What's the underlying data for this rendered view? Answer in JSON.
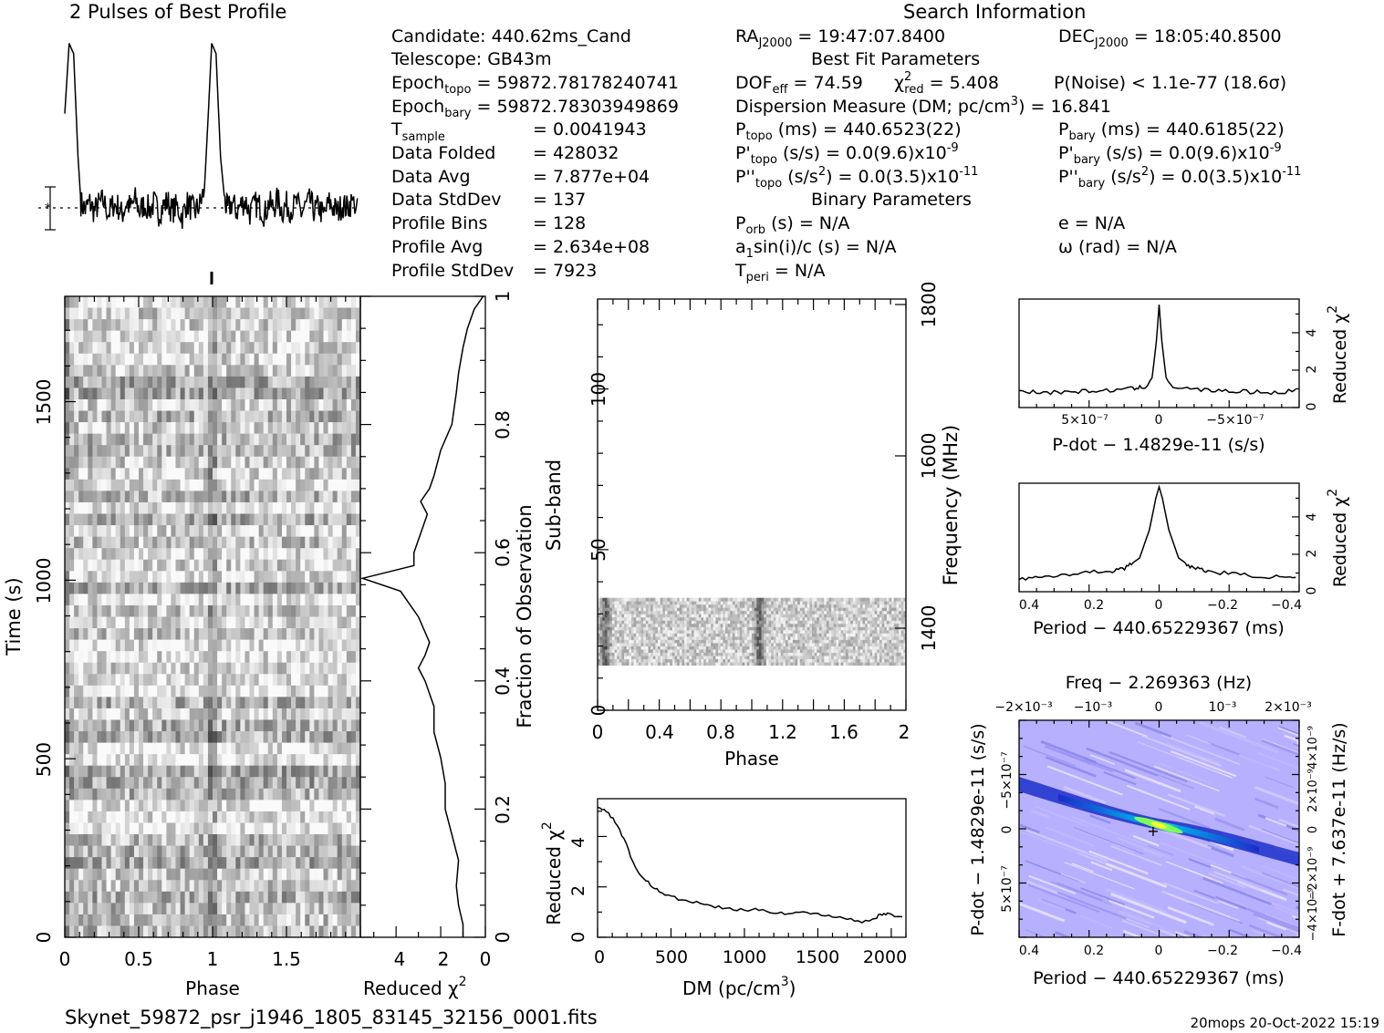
{
  "header": {
    "profile_title": "2 Pulses of Best Profile",
    "search_title": "Search Information",
    "best_fit_title": "Best Fit Parameters",
    "binary_title": "Binary Parameters",
    "filename": "Skynet_59872_psr_j1946_1805_83145_32156_0001.fits",
    "footer_stamp": "20mops 20-Oct-2022 15:19"
  },
  "candidate_info": {
    "candidate": "Candidate:  440.62ms_Cand",
    "telescope": "Telescope:  GB43m",
    "epoch_topo_label": "Epoch",
    "epoch_topo_sub": "topo",
    "epoch_topo_value": " = 59872.78178240741",
    "epoch_bary_label": "Epoch",
    "epoch_bary_sub": "bary",
    "epoch_bary_value": " = 59872.78303949869",
    "tsample_label": "T",
    "tsample_sub": "sample",
    "tsample_value": "=   0.0041943",
    "data_folded_label": "Data Folded",
    "data_folded_value": "=   428032",
    "data_avg_label": "Data Avg",
    "data_avg_value": "=   7.877e+04",
    "data_stddev_label": "Data StdDev",
    "data_stddev_value": "=   137",
    "profile_bins_label": "Profile Bins",
    "profile_bins_value": "=   128",
    "profile_avg_label": "Profile Avg",
    "profile_avg_value": "=   2.634e+08",
    "profile_stddev_label": "Profile StdDev",
    "profile_stddev_value": "=   7923"
  },
  "search_info": {
    "ra_label": "RA",
    "ra_sub": "J2000",
    "ra_value": " = 19:47:07.8400",
    "dec_label": "DEC",
    "dec_sub": "J2000",
    "dec_value": " = 18:05:40.8500",
    "dof_label": "DOF",
    "dof_sub": "eff",
    "dof_value": " = 74.59",
    "chi_label": "χ",
    "chi_sup": "2",
    "chi_sub": "red",
    "chi_value": " = 5.408",
    "pnoise": "P(Noise) < 1.1e-77  (18.6σ)",
    "dm_text": "Dispersion Measure (DM; pc/cm",
    "dm_sup": "3",
    "dm_value": ") = 16.841",
    "ptopo_label": "P",
    "ptopo_sub": "topo",
    "ptopo_value": " (ms) =  440.6523(22)",
    "pbary_label": "P",
    "pbary_sub": "bary",
    "pbary_value": " (ms) =  440.6185(22)",
    "pdtopo_label": "P'",
    "pdtopo_sub": "topo",
    "pdtopo_value": " (s/s) = 0.0(9.6)x10",
    "pdtopo_exp": "-9",
    "pdbary_label": "P'",
    "pdbary_sub": "bary",
    "pdbary_value": " (s/s) = 0.0(9.6)x10",
    "pdbary_exp": "-9",
    "pddtopo_label": "P''",
    "pddtopo_sub": "topo",
    "pddtopo_value": " (s/s",
    "pddtopo_sup": "2",
    "pddtopo_value2": ") = 0.0(3.5)x10",
    "pddtopo_exp": "-11",
    "pddbary_label": "P''",
    "pddbary_sub": "bary",
    "pddbary_value": " (s/s",
    "pddbary_sup": "2",
    "pddbary_value2": ") = 0.0(3.5)x10",
    "pddbary_exp": "-11",
    "porb_label": "P",
    "porb_sub": "orb",
    "porb_value": " (s) = N/A",
    "ecc": "e = N/A",
    "a1_label": "a",
    "a1_sub": "1",
    "a1_value": "sin(i)/c (s) = N/A",
    "omega": "ω (rad) = N/A",
    "tperi_label": "T",
    "tperi_sub": "peri",
    "tperi_value": " = N/A"
  },
  "chart_data": [
    {
      "id": "pulse-profile",
      "type": "line",
      "title": "2 Pulses of Best Profile",
      "x": [
        0.0,
        0.03,
        0.06,
        0.09,
        0.11,
        0.14,
        0.17,
        0.2,
        0.23,
        0.26,
        0.3,
        0.33,
        0.36,
        0.39,
        0.42,
        0.45,
        0.48,
        0.51,
        0.54,
        0.58,
        0.61,
        0.64,
        0.67,
        0.7,
        0.73,
        0.76,
        0.8,
        0.83,
        0.86,
        0.89,
        0.92,
        0.95,
        0.98,
        1.0,
        1.03,
        1.06,
        1.09,
        1.11,
        1.14,
        1.17,
        1.2,
        1.23,
        1.26,
        1.3,
        1.33,
        1.36,
        1.39,
        1.42,
        1.45,
        1.48,
        1.51,
        1.54,
        1.58,
        1.61,
        1.64,
        1.67,
        1.7,
        1.73,
        1.76,
        1.8,
        1.83,
        1.86,
        1.89,
        1.92,
        1.95,
        2.0
      ],
      "y": [
        0.55,
        0.96,
        0.9,
        0.3,
        0.03,
        -0.01,
        0.03,
        -0.02,
        0.02,
        0.04,
        -0.03,
        0.02,
        0.01,
        -0.04,
        0.03,
        0.0,
        0.05,
        -0.02,
        0.02,
        -0.01,
        0.03,
        -0.03,
        0.01,
        0.04,
        -0.02,
        0.01,
        -0.05,
        0.03,
        0.0,
        -0.02,
        0.02,
        0.1,
        0.6,
        0.96,
        0.9,
        0.3,
        0.03,
        -0.01,
        0.03,
        -0.02,
        0.02,
        0.04,
        -0.03,
        0.02,
        0.01,
        -0.04,
        0.03,
        0.0,
        0.05,
        -0.02,
        0.02,
        -0.01,
        0.03,
        -0.03,
        0.01,
        0.04,
        -0.02,
        0.01,
        -0.05,
        0.03,
        0.0,
        -0.02,
        0.02,
        0.0,
        0.03,
        0.02
      ]
    },
    {
      "id": "time-phase",
      "type": "heatmap",
      "xlabel": "Phase",
      "ylabel": "Time (s)",
      "xlim": [
        0,
        2
      ],
      "ylim": [
        0,
        1795
      ],
      "x_ticks": [
        "0",
        "0.5",
        "1",
        "1.5"
      ],
      "y_ticks": [
        "0",
        "500",
        "1000",
        "1500"
      ],
      "pulse_phases": [
        0.0,
        1.0
      ]
    },
    {
      "id": "reduced-chi-time",
      "type": "line",
      "xlabel": "Reduced χ",
      "xlabel_sup": "2",
      "ylabel": "Fraction of Observation",
      "xlim": [
        5.6,
        0
      ],
      "ylim": [
        0,
        1
      ],
      "x_ticks": [
        "4",
        "2",
        "0"
      ],
      "y_ticks": [
        "0",
        "0.2",
        "0.4",
        "0.6",
        "0.8",
        "1"
      ],
      "frac": [
        1.0,
        0.98,
        0.95,
        0.92,
        0.88,
        0.85,
        0.8,
        0.76,
        0.72,
        0.7,
        0.68,
        0.66,
        0.64,
        0.62,
        0.6,
        0.58,
        0.56,
        0.54,
        0.5,
        0.46,
        0.44,
        0.42,
        0.4,
        0.36,
        0.32,
        0.28,
        0.24,
        0.2,
        0.16,
        0.12,
        0.08,
        0.05,
        0.02,
        0.0
      ],
      "chi": [
        0.1,
        0.5,
        0.8,
        1.0,
        1.2,
        1.3,
        1.5,
        2.0,
        2.3,
        2.5,
        2.9,
        2.6,
        2.8,
        3.0,
        3.2,
        3.2,
        5.5,
        3.8,
        3.0,
        2.5,
        2.7,
        3.0,
        2.7,
        2.3,
        2.3,
        2.0,
        1.8,
        1.8,
        1.5,
        1.2,
        1.3,
        1.2,
        1.0,
        1.0
      ]
    },
    {
      "id": "subband-phase",
      "type": "heatmap",
      "xlabel": "Phase",
      "ylabel": "Sub-band",
      "y2label": "Frequency (MHz)",
      "xlim": [
        0,
        2
      ],
      "ylim": [
        0,
        128
      ],
      "x_ticks": [
        "0",
        "0.4",
        "0.8",
        "1.2",
        "1.6",
        "2"
      ],
      "y_ticks": [
        "0",
        "50",
        "100"
      ],
      "y2_ticks": [
        "1400",
        "1600",
        "1800"
      ],
      "active_subbands": [
        14,
        35
      ],
      "pulse_phases": [
        0.05,
        1.05
      ]
    },
    {
      "id": "dm-curve",
      "type": "line",
      "xlabel": "DM (pc/cm",
      "xlabel_sup": "3",
      "ylabel": "Reduced χ",
      "ylabel_sup": "2",
      "xlim": [
        0,
        2100
      ],
      "ylim": [
        0,
        5.5
      ],
      "x_ticks": [
        "0",
        "500",
        "1000",
        "1500",
        "2000"
      ],
      "y_ticks": [
        "0",
        "2",
        "4"
      ],
      "x": [
        0,
        60,
        120,
        180,
        240,
        300,
        360,
        420,
        500,
        600,
        700,
        800,
        900,
        1000,
        1100,
        1200,
        1300,
        1400,
        1500,
        1600,
        1700,
        1800,
        1900,
        1950,
        2000,
        2100
      ],
      "y": [
        5.2,
        5.0,
        4.6,
        3.9,
        3.0,
        2.4,
        2.1,
        1.8,
        1.6,
        1.45,
        1.35,
        1.2,
        1.15,
        1.05,
        1.1,
        1.0,
        0.95,
        1.0,
        0.9,
        0.85,
        0.75,
        0.6,
        0.8,
        0.95,
        0.9,
        0.75
      ]
    },
    {
      "id": "pdot-chi",
      "type": "line",
      "xlabel": "P-dot − 1.4829e-11 (s/s)",
      "ylabel": "Reduced χ",
      "ylabel_sup": "2",
      "xlim": [
        1e-06,
        -1e-06
      ],
      "ylim": [
        0,
        5.8
      ],
      "x_ticks": [
        "5×10⁻⁷",
        "0",
        "−5×10⁻⁷"
      ],
      "y_ticks": [
        "0",
        "2",
        "4"
      ],
      "x": [
        1e-06,
        8e-07,
        6e-07,
        4e-07,
        2e-07,
        1e-07,
        5e-08,
        2e-08,
        0,
        -2e-08,
        -5e-08,
        -1e-07,
        -2e-07,
        -4e-07,
        -6e-07,
        -8e-07,
        -1e-06
      ],
      "y": [
        0.9,
        0.8,
        0.85,
        0.9,
        1.0,
        1.1,
        1.6,
        3.5,
        5.5,
        3.5,
        1.6,
        1.1,
        1.0,
        0.9,
        0.85,
        0.8,
        0.9
      ]
    },
    {
      "id": "period-chi",
      "type": "line",
      "xlabel": "Period − 440.65229367 (ms)",
      "ylabel": "Reduced χ",
      "ylabel_sup": "2",
      "xlim": [
        0.43,
        -0.43
      ],
      "ylim": [
        0,
        5.8
      ],
      "x_ticks": [
        "0.4",
        "0.2",
        "0",
        "−0.2",
        "−0.4"
      ],
      "y_ticks": [
        "0",
        "2",
        "4"
      ],
      "x": [
        0.43,
        0.35,
        0.25,
        0.15,
        0.1,
        0.06,
        0.03,
        0.01,
        0,
        -0.01,
        -0.03,
        -0.06,
        -0.1,
        -0.15,
        -0.25,
        -0.35,
        -0.43
      ],
      "y": [
        0.7,
        0.8,
        1.0,
        1.1,
        1.3,
        1.8,
        3.3,
        5.0,
        5.6,
        5.0,
        3.3,
        1.8,
        1.3,
        1.1,
        0.9,
        0.8,
        0.7
      ]
    },
    {
      "id": "period-pdot-map",
      "type": "heatmap",
      "title": "Freq − 2.269363 (Hz)",
      "xlabel": "Period − 440.65229367 (ms)",
      "ylabel": "P-dot − 1.4829e-11 (s/s)",
      "y2label": "F-dot + 7.637e-11 (Hz/s)",
      "xlim": [
        0.43,
        -0.43
      ],
      "x_ticks": [
        "0.4",
        "0.2",
        "0",
        "−0.2",
        "−0.4"
      ],
      "x2_ticks": [
        "−2×10⁻³",
        "−10⁻³",
        "0",
        "10⁻³",
        "2×10⁻³"
      ],
      "y_ticks": [
        "−5×10⁻⁷",
        "0",
        "5×10⁻⁷"
      ],
      "y2_ticks": [
        "4×10⁻⁹",
        "2×10⁻⁹",
        "0",
        "−2×10⁻⁹",
        "−4×10⁻⁹"
      ],
      "ridge_color": "#00e0ff",
      "peak_color": "#ffff00",
      "bg_color": "#b7b0ff"
    }
  ]
}
